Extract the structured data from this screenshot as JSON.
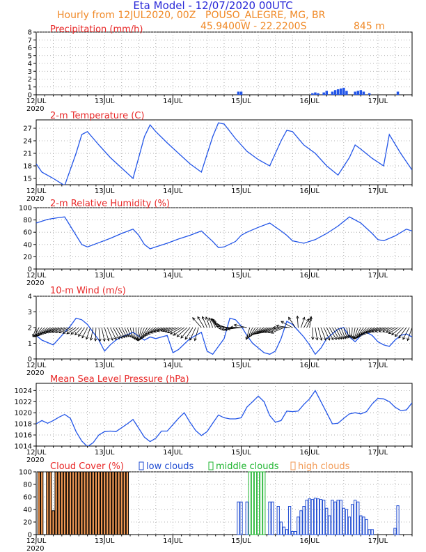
{
  "header": {
    "title": "Eta Model - 12/07/2020 00UTC",
    "subtitle_left": "Hourly from 12JUL2020, 00Z",
    "location": "POUSO_ALEGRE, MG, BR",
    "coords": "45.9400W - 22.2200S",
    "elevation": "845  m"
  },
  "colors": {
    "title": "#2828d8",
    "subtitle": "#f08a28",
    "panel_label": "#e82828",
    "series": "#2255e8",
    "wind_arrow": "#000000",
    "low_clouds": "#1e4bd2",
    "middle_clouds": "#1fb530",
    "high_clouds": "#f29a55",
    "grid": "#9a9a9a"
  },
  "x_axis": {
    "days": [
      "12JUL",
      "13JUL",
      "14JUL",
      "15JUL",
      "16JUL",
      "17JUL"
    ],
    "year": "2020",
    "hours_total": 132
  },
  "chart_data": [
    {
      "type": "bar",
      "id": "precip",
      "title": "Precipitation (mm/h)",
      "ylim": [
        0,
        8
      ],
      "yticks": [
        0,
        1,
        2,
        3,
        4,
        5,
        6,
        7,
        8
      ],
      "x": [
        71,
        72,
        97,
        98,
        99,
        101,
        102,
        104,
        105,
        106,
        107,
        108,
        109,
        112,
        113,
        114,
        115,
        117,
        127
      ],
      "values": [
        0.4,
        0.4,
        0.2,
        0.3,
        0.2,
        0.3,
        0.5,
        0.4,
        0.6,
        0.7,
        0.8,
        0.9,
        0.5,
        0.4,
        0.5,
        0.6,
        0.4,
        0.2,
        0.4
      ]
    },
    {
      "type": "line",
      "id": "temp",
      "title": "2-m Temperature (C)",
      "ylim": [
        13.5,
        29
      ],
      "yticks": [
        15,
        18,
        21,
        24,
        27
      ],
      "x": [
        0,
        2,
        6,
        10,
        14,
        16,
        18,
        22,
        26,
        30,
        34,
        38,
        40,
        42,
        46,
        50,
        54,
        58,
        62,
        64,
        66,
        70,
        74,
        78,
        82,
        86,
        88,
        90,
        94,
        98,
        102,
        106,
        110,
        112,
        114,
        118,
        122,
        124,
        128,
        132
      ],
      "values": [
        18.5,
        16.5,
        15.0,
        13.3,
        21.0,
        25.5,
        26.2,
        23.0,
        20.0,
        17.5,
        15.0,
        25.0,
        27.8,
        26.2,
        23.5,
        21.0,
        18.5,
        16.5,
        25.0,
        28.3,
        28.0,
        24.5,
        21.5,
        19.5,
        18.0,
        24.0,
        26.5,
        26.2,
        23.0,
        21.0,
        18.0,
        15.8,
        20.0,
        23.0,
        22.0,
        19.8,
        18.0,
        25.5,
        21.0,
        17.0
      ]
    },
    {
      "type": "line",
      "id": "rh",
      "title": "2-m Relative Humidity (%)",
      "ylim": [
        0,
        100
      ],
      "yticks": [
        0,
        20,
        40,
        60,
        80,
        100
      ],
      "x": [
        0,
        4,
        8,
        10,
        12,
        14,
        16,
        18,
        22,
        26,
        30,
        34,
        36,
        38,
        40,
        42,
        46,
        50,
        54,
        58,
        62,
        64,
        66,
        70,
        72,
        74,
        78,
        82,
        86,
        88,
        90,
        94,
        98,
        102,
        106,
        110,
        114,
        118,
        120,
        122,
        126,
        130,
        132
      ],
      "values": [
        75,
        81,
        84,
        85,
        70,
        55,
        40,
        36,
        43,
        50,
        58,
        65,
        55,
        40,
        33,
        36,
        42,
        49,
        55,
        62,
        45,
        35,
        36,
        45,
        55,
        60,
        68,
        75,
        62,
        55,
        46,
        42,
        48,
        58,
        70,
        85,
        75,
        58,
        48,
        46,
        54,
        65,
        62
      ]
    },
    {
      "type": "line",
      "id": "wind",
      "title": "10-m Wind (m/s)",
      "ylim": [
        0,
        4
      ],
      "yticks": [
        0,
        1,
        2,
        3,
        4
      ],
      "x": [
        0,
        2,
        6,
        8,
        10,
        12,
        14,
        16,
        18,
        20,
        22,
        24,
        26,
        28,
        30,
        34,
        38,
        40,
        42,
        46,
        48,
        50,
        54,
        58,
        60,
        62,
        64,
        66,
        68,
        70,
        72,
        74,
        76,
        78,
        80,
        82,
        84,
        86,
        88,
        90,
        92,
        94,
        96,
        98,
        100,
        102,
        104,
        106,
        108,
        110,
        112,
        114,
        116,
        118,
        120,
        122,
        124,
        126,
        128,
        130,
        132
      ],
      "values": [
        1.5,
        1.2,
        0.9,
        1.3,
        1.7,
        2.1,
        2.6,
        2.5,
        2.2,
        1.7,
        1.2,
        0.5,
        0.9,
        1.2,
        1.4,
        1.7,
        1.2,
        1.4,
        1.3,
        1.5,
        0.4,
        0.6,
        1.3,
        1.7,
        0.5,
        0.3,
        0.8,
        1.3,
        2.6,
        2.5,
        2.1,
        1.5,
        1.0,
        0.7,
        0.4,
        0.3,
        0.5,
        1.3,
        2.4,
        2.2,
        1.8,
        1.4,
        0.9,
        0.3,
        0.7,
        1.3,
        1.6,
        1.9,
        2.0,
        1.4,
        1.1,
        1.5,
        1.7,
        1.5,
        1.1,
        0.9,
        0.8,
        1.2,
        1.5,
        1.6,
        1.4
      ]
    },
    {
      "type": "line",
      "id": "mslp",
      "title": "Mean Sea Level Pressure (hPa)",
      "ylim": [
        1014,
        1025.3
      ],
      "yticks": [
        1014,
        1016,
        1018,
        1020,
        1022,
        1024
      ],
      "x": [
        0,
        2,
        4,
        6,
        8,
        10,
        12,
        14,
        16,
        18,
        20,
        22,
        24,
        26,
        28,
        32,
        34,
        36,
        38,
        40,
        42,
        44,
        46,
        50,
        52,
        54,
        56,
        58,
        60,
        62,
        64,
        66,
        68,
        70,
        72,
        74,
        76,
        78,
        80,
        82,
        84,
        86,
        88,
        90,
        92,
        94,
        96,
        98,
        100,
        102,
        104,
        106,
        108,
        110,
        112,
        114,
        116,
        118,
        120,
        122,
        124,
        126,
        128,
        130,
        132
      ],
      "values": [
        1018.0,
        1018.6,
        1018.1,
        1018.6,
        1019.2,
        1019.7,
        1019.0,
        1016.6,
        1014.9,
        1013.9,
        1014.6,
        1016.0,
        1016.6,
        1016.7,
        1016.6,
        1018.0,
        1018.8,
        1017.2,
        1015.6,
        1014.8,
        1015.4,
        1016.7,
        1016.7,
        1019.0,
        1020.0,
        1018.3,
        1016.8,
        1015.9,
        1016.6,
        1018.1,
        1019.6,
        1019.1,
        1018.9,
        1018.9,
        1019.1,
        1021.0,
        1022.0,
        1023.0,
        1022.0,
        1019.5,
        1018.3,
        1018.6,
        1020.3,
        1020.2,
        1020.3,
        1021.5,
        1022.5,
        1024.0,
        1022.0,
        1020.0,
        1018.0,
        1018.1,
        1019.0,
        1019.8,
        1020.0,
        1019.8,
        1020.2,
        1021.6,
        1022.6,
        1022.5,
        1022.0,
        1021.0,
        1020.4,
        1020.5,
        1021.8
      ]
    },
    {
      "type": "bar",
      "id": "cloud",
      "title": "Cloud Cover (%)",
      "ylim": [
        0,
        100
      ],
      "yticks": [
        0,
        20,
        40,
        60,
        80,
        100
      ],
      "legend": [
        "low clouds",
        "middle clouds",
        "high clouds"
      ],
      "series": [
        {
          "name": "high clouds",
          "x": [
            1,
            2,
            4,
            5,
            6,
            7,
            8,
            9,
            10,
            11,
            12,
            13,
            14,
            15,
            16,
            17,
            18,
            19,
            20,
            21,
            22,
            23,
            24,
            25,
            26,
            27,
            28,
            29,
            30,
            31,
            32
          ],
          "values": [
            100,
            100,
            100,
            100,
            38,
            100,
            100,
            100,
            100,
            100,
            100,
            100,
            100,
            100,
            100,
            100,
            100,
            100,
            100,
            100,
            100,
            100,
            100,
            100,
            100,
            100,
            100,
            100,
            100,
            100,
            100
          ]
        },
        {
          "name": "middle clouds",
          "x": [
            75,
            76,
            77,
            78,
            79,
            80
          ],
          "values": [
            100,
            100,
            100,
            100,
            100,
            100
          ]
        },
        {
          "name": "low clouds",
          "x": [
            71,
            72,
            74,
            82,
            83,
            85,
            86,
            87,
            88,
            89,
            90,
            91,
            92,
            93,
            94,
            95,
            96,
            97,
            98,
            99,
            100,
            101,
            102,
            103,
            104,
            105,
            106,
            107,
            108,
            109,
            110,
            111,
            112,
            113,
            114,
            115,
            116,
            117,
            118,
            126,
            127
          ],
          "values": [
            52,
            52,
            52,
            52,
            52,
            45,
            20,
            12,
            8,
            45,
            5,
            5,
            28,
            38,
            45,
            55,
            57,
            56,
            58,
            57,
            56,
            55,
            42,
            30,
            55,
            52,
            55,
            55,
            42,
            40,
            28,
            48,
            55,
            52,
            30,
            28,
            24,
            8,
            8,
            10,
            46
          ]
        }
      ]
    }
  ]
}
